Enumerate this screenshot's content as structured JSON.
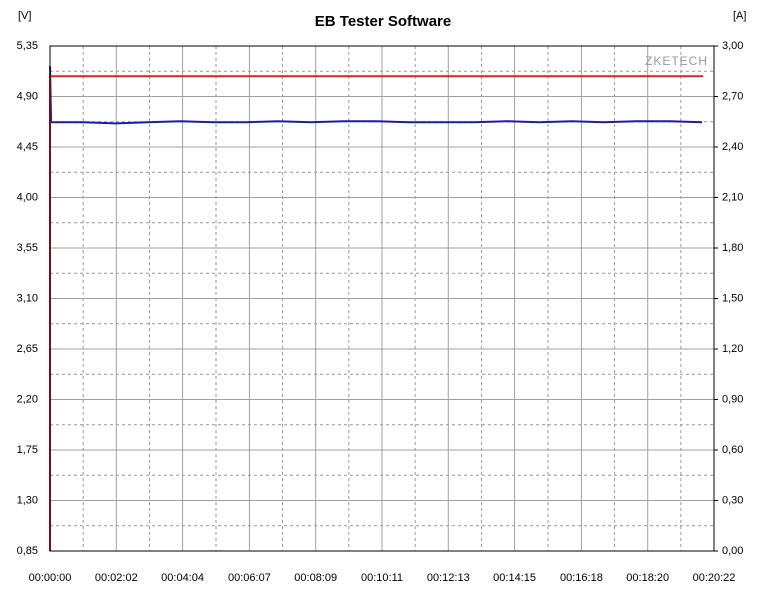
{
  "chart_data": {
    "type": "line",
    "title": "EB Tester Software",
    "y_label": "[V]",
    "y2_label": "[A]",
    "watermark": "ZKETECH",
    "xlim": [
      0,
      1222
    ],
    "xticks": [
      {
        "value": 0,
        "label": "00:00:00"
      },
      {
        "value": 122,
        "label": "00:02:02"
      },
      {
        "value": 244,
        "label": "00:04:04"
      },
      {
        "value": 367,
        "label": "00:06:07"
      },
      {
        "value": 489,
        "label": "00:08:09"
      },
      {
        "value": 611,
        "label": "00:10:11"
      },
      {
        "value": 733,
        "label": "00:12:13"
      },
      {
        "value": 855,
        "label": "00:14:15"
      },
      {
        "value": 978,
        "label": "00:16:18"
      },
      {
        "value": 1100,
        "label": "00:18:20"
      },
      {
        "value": 1222,
        "label": "00:20:22"
      }
    ],
    "ylim": [
      0.85,
      5.35
    ],
    "yticks": [
      {
        "value": 0.85,
        "label": "0,85"
      },
      {
        "value": 1.3,
        "label": "1,30"
      },
      {
        "value": 1.75,
        "label": "1,75"
      },
      {
        "value": 2.2,
        "label": "2,20"
      },
      {
        "value": 2.65,
        "label": "2,65"
      },
      {
        "value": 3.1,
        "label": "3,10"
      },
      {
        "value": 3.55,
        "label": "3,55"
      },
      {
        "value": 4.0,
        "label": "4,00"
      },
      {
        "value": 4.45,
        "label": "4,45"
      },
      {
        "value": 4.9,
        "label": "4,90"
      },
      {
        "value": 5.35,
        "label": "5,35"
      }
    ],
    "y2lim": [
      0,
      3
    ],
    "y2ticks": [
      {
        "value": 0,
        "label": "0,00"
      },
      {
        "value": 0.3,
        "label": "0,30"
      },
      {
        "value": 0.6,
        "label": "0,60"
      },
      {
        "value": 0.9,
        "label": "0,90"
      },
      {
        "value": 1.2,
        "label": "1,20"
      },
      {
        "value": 1.5,
        "label": "1,50"
      },
      {
        "value": 1.8,
        "label": "1,80"
      },
      {
        "value": 2.1,
        "label": "2,10"
      },
      {
        "value": 2.4,
        "label": "2,40"
      },
      {
        "value": 2.7,
        "label": "2,70"
      },
      {
        "value": 3.0,
        "label": "3,00"
      }
    ],
    "grid": true,
    "series": [
      {
        "color": "#1c1ca8",
        "x": [
          0,
          2,
          60,
          120,
          180,
          240,
          300,
          360,
          420,
          480,
          540,
          600,
          660,
          720,
          780,
          840,
          900,
          960,
          1020,
          1080,
          1140,
          1200
        ],
        "values": [
          5.17,
          4.67,
          4.67,
          4.66,
          4.67,
          4.68,
          4.67,
          4.67,
          4.68,
          4.67,
          4.68,
          4.68,
          4.67,
          4.67,
          4.67,
          4.68,
          4.67,
          4.68,
          4.67,
          4.68,
          4.68,
          4.67
        ]
      },
      {
        "color": "#e02020",
        "axis": "y2",
        "x": [
          0,
          0,
          1202
        ],
        "values": [
          0,
          2.82,
          2.82
        ]
      }
    ]
  }
}
